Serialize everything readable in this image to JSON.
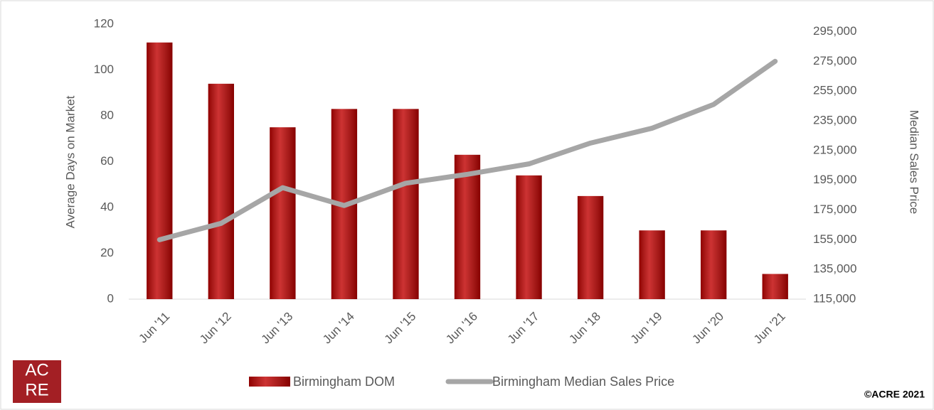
{
  "chart_data": {
    "type": "bar-line",
    "categories": [
      "Jun '11",
      "Jun '12",
      "Jun '13",
      "Jun '14",
      "Jun '15",
      "Jun '16",
      "Jun '17",
      "Jun '18",
      "Jun '19",
      "Jun '20",
      "Jun '21"
    ],
    "series": [
      {
        "name": "Birmingham DOM",
        "type": "bar",
        "color": "#c00000",
        "values": [
          112,
          94,
          75,
          83,
          83,
          63,
          54,
          45,
          30,
          30,
          11
        ]
      },
      {
        "name": "Birmingham Median Sales Price",
        "type": "line",
        "axis": "y2",
        "color": "#a6a6a6",
        "values": [
          155000,
          166000,
          190000,
          178000,
          193000,
          199000,
          206000,
          220000,
          230000,
          246000,
          275000
        ]
      }
    ],
    "ylabel": "Average Days on Market",
    "y2label": "Median Sales Price",
    "ylim": [
      0,
      120
    ],
    "yticks": [
      0,
      20,
      40,
      60,
      80,
      100,
      120
    ],
    "y2lim": [
      115000,
      300000
    ],
    "y2ticks": [
      {
        "value": 115000,
        "label": "115,000"
      },
      {
        "value": 135000,
        "label": "135,000"
      },
      {
        "value": 155000,
        "label": "155,000"
      },
      {
        "value": 175000,
        "label": "175,000"
      },
      {
        "value": 195000,
        "label": "195,000"
      },
      {
        "value": 215000,
        "label": "215,000"
      },
      {
        "value": 235000,
        "label": "235,000"
      },
      {
        "value": 255000,
        "label": "255,000"
      },
      {
        "value": 275000,
        "label": "275,000"
      },
      {
        "value": 295000,
        "label": "295,000"
      }
    ],
    "grid": false,
    "legend": "bottom",
    "logo": [
      "AC",
      "RE"
    ],
    "copyright": "©ACRE 2021"
  }
}
